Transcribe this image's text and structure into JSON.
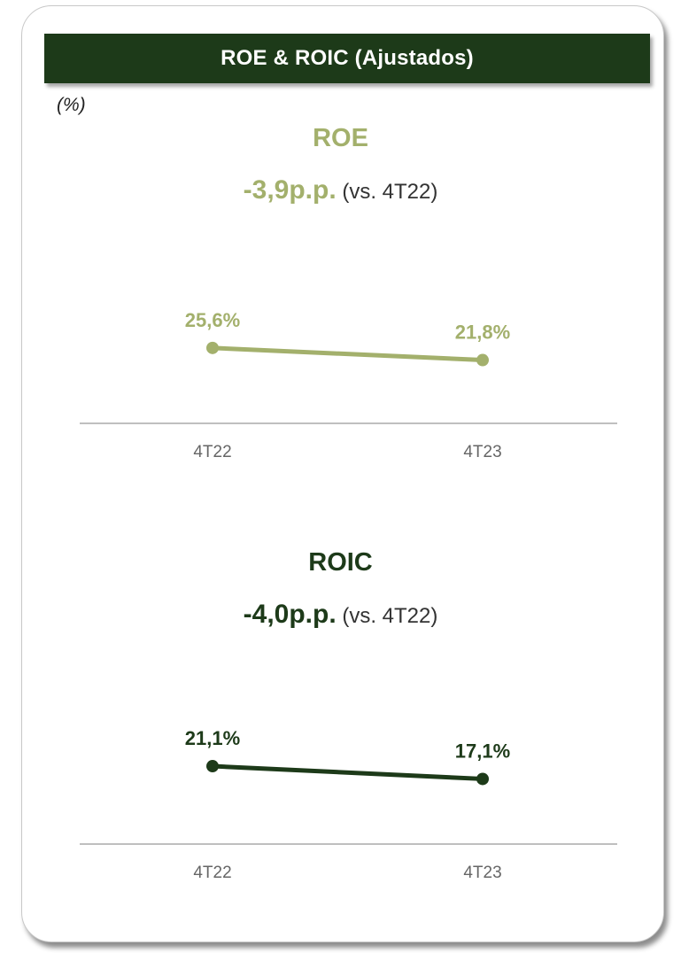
{
  "header": {
    "title": "ROE & ROIC (Ajustados)",
    "unit": "(%)"
  },
  "colors": {
    "header_bg": "#1d3a19",
    "roe": "#a3b06c",
    "roic": "#1d3a19",
    "axis": "#bfbfbf",
    "tick_text": "#666666"
  },
  "chart_data": [
    {
      "type": "line",
      "title": "ROE",
      "delta_value": "-3,9p.p.",
      "delta_note": "(vs. 4T22)",
      "categories": [
        "4T22",
        "4T23"
      ],
      "series": [
        {
          "values": [
            25.6,
            21.8
          ],
          "labels": [
            "25,6%",
            "21,8%"
          ]
        }
      ],
      "ylim": [
        0,
        100
      ],
      "grid": false,
      "legend": "none"
    },
    {
      "type": "line",
      "title": "ROIC",
      "delta_value": "-4,0p.p.",
      "delta_note": "(vs. 4T22)",
      "categories": [
        "4T22",
        "4T23"
      ],
      "series": [
        {
          "values": [
            21.1,
            17.1
          ],
          "labels": [
            "21,1%",
            "17,1%"
          ]
        }
      ],
      "ylim": [
        0,
        100
      ],
      "grid": false,
      "legend": "none"
    }
  ]
}
